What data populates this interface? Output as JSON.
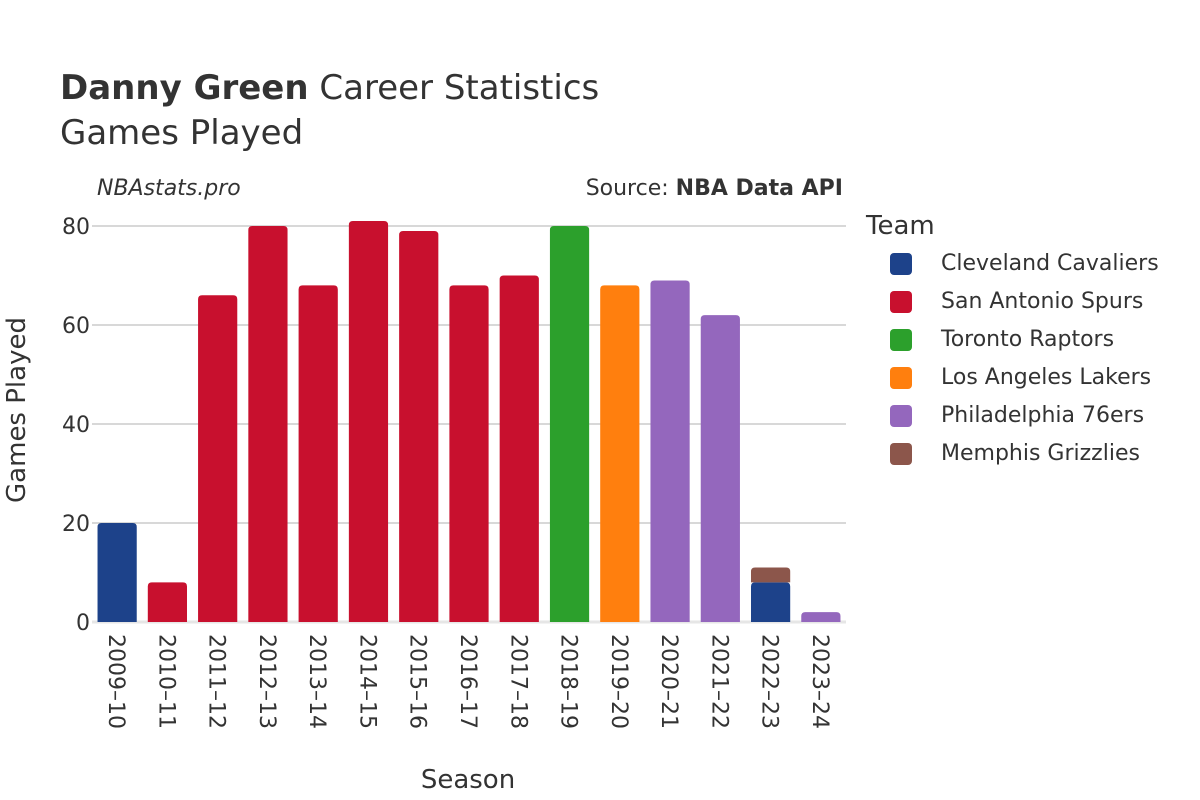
{
  "header": {
    "player_name": "Danny Green",
    "title_rest": "Career Statistics",
    "subtitle": "Games Played",
    "watermark": "NBAstats.pro",
    "source_label": "Source: ",
    "source_name": "NBA Data API"
  },
  "legend": {
    "title": "Team",
    "items": [
      {
        "label": "Cleveland Cavaliers",
        "color": "#1d428a"
      },
      {
        "label": "San Antonio Spurs",
        "color": "#c8102e"
      },
      {
        "label": "Toronto Raptors",
        "color": "#2ca02c"
      },
      {
        "label": "Los Angeles Lakers",
        "color": "#ff7f0e"
      },
      {
        "label": "Philadelphia 76ers",
        "color": "#9467bd"
      },
      {
        "label": "Memphis Grizzlies",
        "color": "#8c564b"
      }
    ]
  },
  "chart_data": {
    "type": "bar",
    "stacked": true,
    "xlabel": "Season",
    "ylabel": "Games Played",
    "ylim": [
      0,
      80
    ],
    "yticks": [
      0,
      20,
      40,
      60,
      80
    ],
    "grid": true,
    "legend_position": "right",
    "categories": [
      "2009–10",
      "2010–11",
      "2011–12",
      "2012–13",
      "2013–14",
      "2014–15",
      "2015–16",
      "2016–17",
      "2017–18",
      "2018–19",
      "2019–20",
      "2020–21",
      "2021–22",
      "2022–23",
      "2023–24"
    ],
    "series": [
      {
        "name": "Cleveland Cavaliers",
        "color": "#1d428a",
        "values": [
          20,
          0,
          0,
          0,
          0,
          0,
          0,
          0,
          0,
          0,
          0,
          0,
          0,
          8,
          0
        ]
      },
      {
        "name": "San Antonio Spurs",
        "color": "#c8102e",
        "values": [
          0,
          8,
          66,
          80,
          68,
          81,
          79,
          68,
          70,
          0,
          0,
          0,
          0,
          0,
          0
        ]
      },
      {
        "name": "Toronto Raptors",
        "color": "#2ca02c",
        "values": [
          0,
          0,
          0,
          0,
          0,
          0,
          0,
          0,
          0,
          80,
          0,
          0,
          0,
          0,
          0
        ]
      },
      {
        "name": "Los Angeles Lakers",
        "color": "#ff7f0e",
        "values": [
          0,
          0,
          0,
          0,
          0,
          0,
          0,
          0,
          0,
          0,
          68,
          0,
          0,
          0,
          0
        ]
      },
      {
        "name": "Philadelphia 76ers",
        "color": "#9467bd",
        "values": [
          0,
          0,
          0,
          0,
          0,
          0,
          0,
          0,
          0,
          0,
          0,
          69,
          62,
          0,
          2
        ]
      },
      {
        "name": "Memphis Grizzlies",
        "color": "#8c564b",
        "values": [
          0,
          0,
          0,
          0,
          0,
          0,
          0,
          0,
          0,
          0,
          0,
          0,
          0,
          3,
          0
        ]
      }
    ]
  }
}
